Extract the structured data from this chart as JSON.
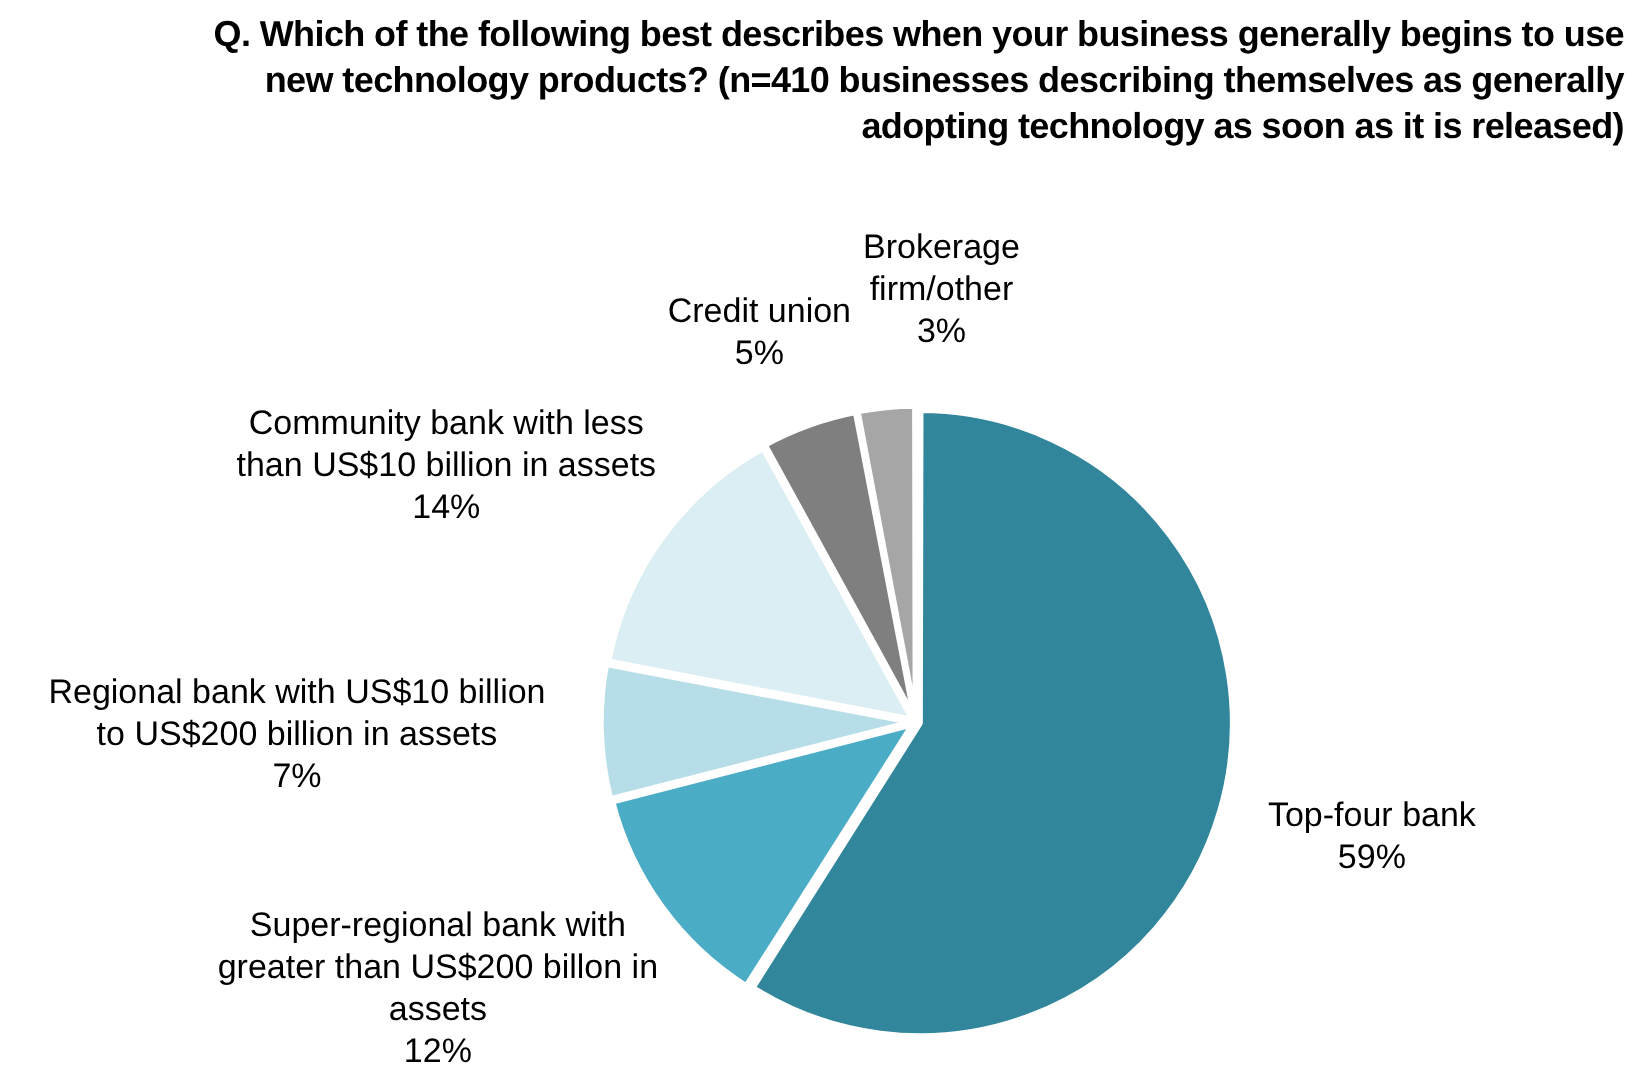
{
  "chart_data": {
    "type": "pie",
    "title": "Q. Which of the following best describes when your business generally begins to use new technology products? (n=410 businesses describing themselves as generally adopting technology as soon as it is released)",
    "categories": [
      "Top-four bank",
      "Super-regional bank with greater than US$200 billon in assets",
      "Regional bank with US$10 billion to US$200 billion in assets",
      "Community bank with less than US$10 billion in assets",
      "Credit union",
      "Brokerage firm/other"
    ],
    "values": [
      59,
      12,
      7,
      14,
      5,
      3
    ],
    "colors": [
      "#31869b",
      "#4bacc6",
      "#b7dee8",
      "#dbeef3",
      "#7f7f7f",
      "#a6a6a6"
    ],
    "value_labels": [
      "59%",
      "12%",
      "7%",
      "14%",
      "5%",
      "3%"
    ],
    "legend": false
  }
}
